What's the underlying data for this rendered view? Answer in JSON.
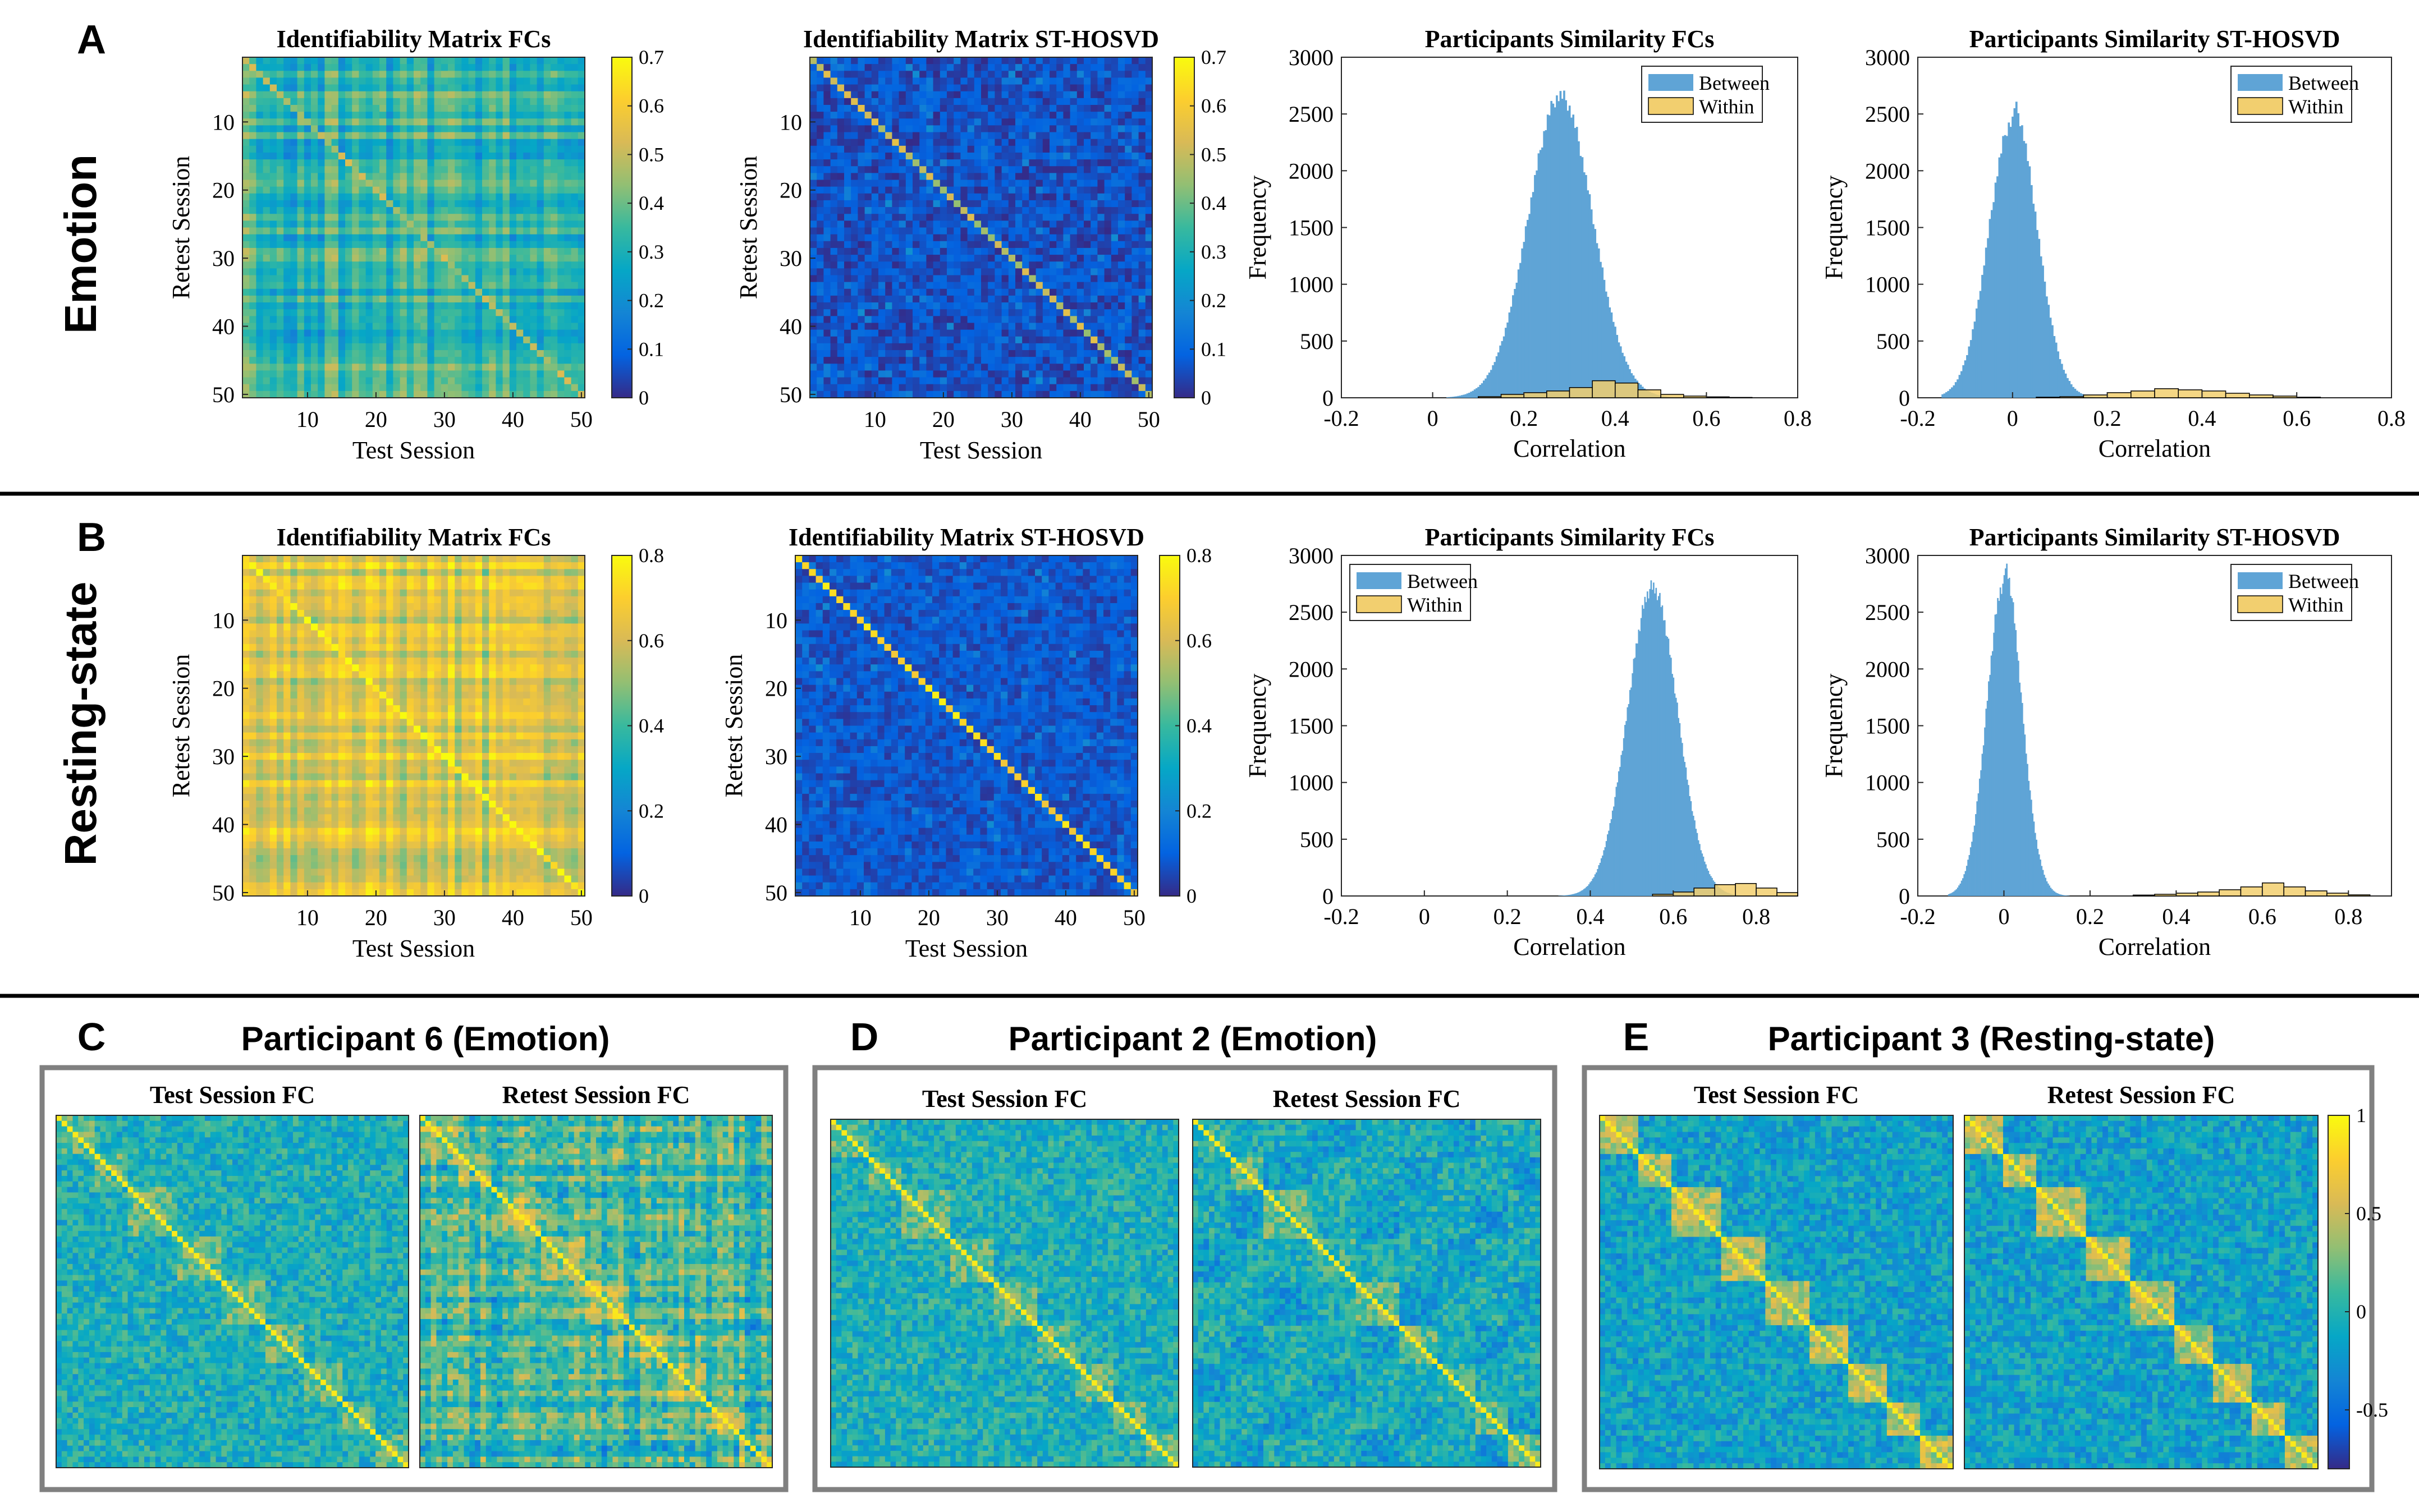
{
  "sections": [
    {
      "letter": "A",
      "row_label": "Emotion"
    },
    {
      "letter": "B",
      "row_label": "Resting-state"
    }
  ],
  "bottom_panels": [
    {
      "letter": "C",
      "title": "Participant 6 (Emotion)",
      "left_title": "Test Session FC",
      "right_title": "Retest Session FC"
    },
    {
      "letter": "D",
      "title": "Participant 2 (Emotion)",
      "left_title": "Test Session FC",
      "right_title": "Retest Session FC"
    },
    {
      "letter": "E",
      "title": "Participant 3 (Resting-state)",
      "left_title": "Test Session FC",
      "right_title": "Retest Session FC"
    }
  ],
  "fc_colorbar_ticks": [
    "1",
    "0.5",
    "0",
    "-0.5"
  ],
  "colors": {
    "between": "#5fa4d6",
    "within": "#f2cf6f",
    "within_edge": "#000000",
    "divider": "#000000",
    "panel_frame": "#808080"
  },
  "chart_data": [
    {
      "id": "a1",
      "type": "heatmap",
      "title": "Identifiability Matrix FCs",
      "xlabel": "Test Session",
      "ylabel": "Retest Session",
      "n": 50,
      "ticks": [
        "10",
        "20",
        "30",
        "40",
        "50"
      ],
      "clim": [
        0,
        0.7
      ],
      "colorbar_ticks": [
        "0",
        "0.1",
        "0.2",
        "0.3",
        "0.4",
        "0.5",
        "0.6",
        "0.7"
      ],
      "offdiag_mean": 0.33,
      "diag_mean": 0.48
    },
    {
      "id": "a2",
      "type": "heatmap",
      "title": "Identifiability Matrix ST-HOSVD",
      "xlabel": "Test Session",
      "ylabel": "Retest Session",
      "n": 50,
      "ticks": [
        "10",
        "20",
        "30",
        "40",
        "50"
      ],
      "clim": [
        0,
        0.7
      ],
      "colorbar_ticks": [
        "0",
        "0.1",
        "0.2",
        "0.3",
        "0.4",
        "0.5",
        "0.6",
        "0.7"
      ],
      "offdiag_mean": 0.06,
      "diag_mean": 0.5
    },
    {
      "id": "a3",
      "type": "histogram",
      "title": "Participants Similarity FCs",
      "xlabel": "Correlation",
      "ylabel": "Frequency",
      "xlim": [
        -0.2,
        0.8
      ],
      "ylim": [
        0,
        3000
      ],
      "xticks": [
        "-0.2",
        "0",
        "0.2",
        "0.4",
        "0.6",
        "0.8"
      ],
      "yticks": [
        "0",
        "500",
        "1000",
        "1500",
        "2000",
        "2500",
        "3000"
      ],
      "legend": [
        "Between",
        "Within"
      ],
      "legend_position": "top-right",
      "between": {
        "mean": 0.28,
        "sd": 0.07,
        "peak": 2660,
        "range": [
          0.03,
          0.6
        ],
        "bin_width": 0.004
      },
      "within": {
        "bin_edges": [
          0.1,
          0.15,
          0.2,
          0.25,
          0.3,
          0.35,
          0.4,
          0.45,
          0.5,
          0.55,
          0.6,
          0.65,
          0.7
        ],
        "counts": [
          10,
          30,
          45,
          60,
          90,
          150,
          130,
          70,
          30,
          15,
          8,
          3
        ]
      }
    },
    {
      "id": "a4",
      "type": "histogram",
      "title": "Participants Similarity ST-HOSVD",
      "xlabel": "Correlation",
      "ylabel": "Frequency",
      "xlim": [
        -0.2,
        0.8
      ],
      "ylim": [
        0,
        3000
      ],
      "xticks": [
        "-0.2",
        "0",
        "0.2",
        "0.4",
        "0.6",
        "0.8"
      ],
      "yticks": [
        "0",
        "500",
        "1000",
        "1500",
        "2000",
        "2500",
        "3000"
      ],
      "legend": [
        "Between",
        "Within"
      ],
      "legend_position": "top-right",
      "between": {
        "mean": 0.0,
        "sd": 0.05,
        "peak": 2580,
        "range": [
          -0.15,
          0.22
        ],
        "bin_width": 0.004
      },
      "within": {
        "bin_edges": [
          0.05,
          0.1,
          0.15,
          0.2,
          0.25,
          0.3,
          0.35,
          0.4,
          0.45,
          0.5,
          0.55,
          0.6,
          0.65
        ],
        "counts": [
          5,
          10,
          25,
          45,
          60,
          80,
          70,
          60,
          40,
          25,
          15,
          5
        ]
      }
    },
    {
      "id": "b1",
      "type": "heatmap",
      "title": "Identifiability Matrix FCs",
      "xlabel": "Test Session",
      "ylabel": "Retest Session",
      "n": 50,
      "ticks": [
        "10",
        "20",
        "30",
        "40",
        "50"
      ],
      "clim": [
        0,
        0.8
      ],
      "colorbar_ticks": [
        "0",
        "0.2",
        "0.4",
        "0.6",
        "0.8"
      ],
      "offdiag_mean": 0.62,
      "diag_mean": 0.78
    },
    {
      "id": "b2",
      "type": "heatmap",
      "title": "Identifiability Matrix ST-HOSVD",
      "xlabel": "Test Session",
      "ylabel": "Retest Session",
      "n": 50,
      "ticks": [
        "10",
        "20",
        "30",
        "40",
        "50"
      ],
      "clim": [
        0,
        0.8
      ],
      "colorbar_ticks": [
        "0",
        "0.2",
        "0.4",
        "0.6",
        "0.8"
      ],
      "offdiag_mean": 0.08,
      "diag_mean": 0.72
    },
    {
      "id": "b3",
      "type": "histogram",
      "title": "Participants Similarity FCs",
      "xlabel": "Correlation",
      "ylabel": "Frequency",
      "xlim": [
        -0.2,
        0.9
      ],
      "ylim": [
        0,
        3000
      ],
      "xticks": [
        "-0.2",
        "0",
        "0.2",
        "0.4",
        "0.6",
        "0.8"
      ],
      "yticks": [
        "0",
        "500",
        "1000",
        "1500",
        "2000",
        "2500",
        "3000"
      ],
      "legend": [
        "Between",
        "Within"
      ],
      "legend_position": "top-left",
      "between": {
        "mean": 0.55,
        "sd": 0.06,
        "peak": 2720,
        "range": [
          0.32,
          0.8
        ],
        "bin_width": 0.003
      },
      "within": {
        "bin_edges": [
          0.55,
          0.6,
          0.65,
          0.7,
          0.75,
          0.8,
          0.85,
          0.9
        ],
        "counts": [
          15,
          35,
          70,
          100,
          110,
          70,
          30
        ]
      }
    },
    {
      "id": "b4",
      "type": "histogram",
      "title": "Participants Similarity ST-HOSVD",
      "xlabel": "Correlation",
      "ylabel": "Frequency",
      "xlim": [
        -0.2,
        0.9
      ],
      "ylim": [
        0,
        3000
      ],
      "xticks": [
        "-0.2",
        "0",
        "0.2",
        "0.4",
        "0.6",
        "0.8"
      ],
      "yticks": [
        "0",
        "500",
        "1000",
        "1500",
        "2000",
        "2500",
        "3000"
      ],
      "legend": [
        "Between",
        "Within"
      ],
      "legend_position": "top-right",
      "between": {
        "mean": 0.0,
        "sd": 0.04,
        "peak": 2920,
        "range": [
          -0.13,
          0.15
        ],
        "bin_width": 0.003
      },
      "within": {
        "bin_edges": [
          0.3,
          0.35,
          0.4,
          0.45,
          0.5,
          0.55,
          0.6,
          0.65,
          0.7,
          0.75,
          0.8,
          0.85
        ],
        "counts": [
          8,
          15,
          25,
          35,
          55,
          80,
          115,
          80,
          45,
          25,
          10
        ]
      }
    }
  ]
}
